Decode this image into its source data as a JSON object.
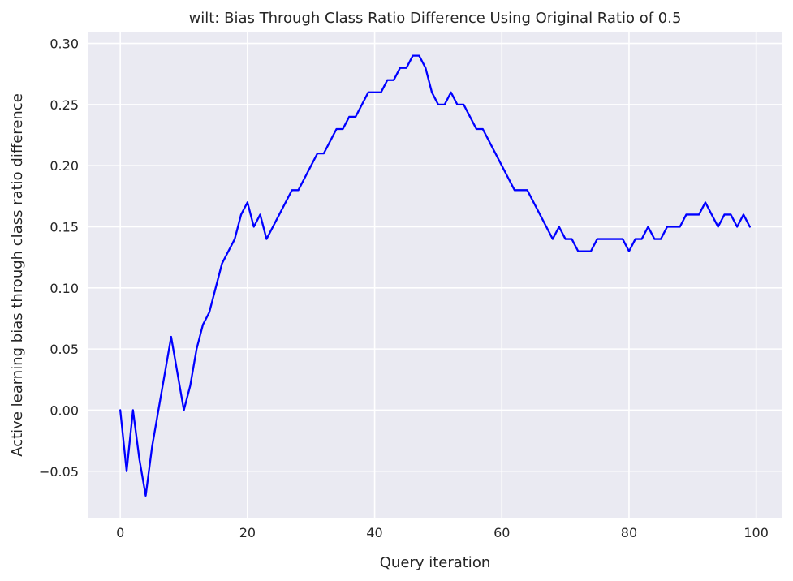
{
  "chart_data": {
    "type": "line",
    "title": "wilt: Bias Through Class Ratio Difference Using Original Ratio of 0.5",
    "xlabel": "Query iteration",
    "ylabel": "Active learning bias through class ratio difference",
    "xlim": [
      -5,
      104
    ],
    "ylim": [
      -0.088,
      0.309
    ],
    "xticks": [
      0,
      20,
      40,
      60,
      80,
      100
    ],
    "xtick_labels": [
      "0",
      "20",
      "40",
      "60",
      "80",
      "100"
    ],
    "yticks": [
      -0.05,
      0.0,
      0.05,
      0.1,
      0.15,
      0.2,
      0.25,
      0.3
    ],
    "ytick_labels": [
      "−0.05",
      "0.00",
      "0.05",
      "0.10",
      "0.15",
      "0.20",
      "0.25",
      "0.30"
    ],
    "grid": true,
    "background": "#eaeaf2",
    "grid_color": "#ffffff",
    "series": [
      {
        "color": "#0000ff",
        "x": [
          0,
          1,
          2,
          3,
          4,
          5,
          6,
          7,
          8,
          9,
          10,
          11,
          12,
          13,
          14,
          15,
          16,
          17,
          18,
          19,
          20,
          21,
          22,
          23,
          24,
          25,
          26,
          27,
          28,
          29,
          30,
          31,
          32,
          33,
          34,
          35,
          36,
          37,
          38,
          39,
          40,
          41,
          42,
          43,
          44,
          45,
          46,
          47,
          48,
          49,
          50,
          51,
          52,
          53,
          54,
          55,
          56,
          57,
          58,
          59,
          60,
          61,
          62,
          63,
          64,
          65,
          66,
          67,
          68,
          69,
          70,
          71,
          72,
          73,
          74,
          75,
          76,
          77,
          78,
          79,
          80,
          81,
          82,
          83,
          84,
          85,
          86,
          87,
          88,
          89,
          90,
          91,
          92,
          93,
          94,
          95,
          96,
          97,
          98,
          99
        ],
        "y": [
          0.0,
          -0.05,
          0.0,
          -0.04,
          -0.07,
          -0.03,
          0.0,
          0.03,
          0.06,
          0.03,
          0.0,
          0.02,
          0.05,
          0.07,
          0.08,
          0.1,
          0.12,
          0.13,
          0.14,
          0.16,
          0.17,
          0.15,
          0.16,
          0.14,
          0.15,
          0.16,
          0.17,
          0.18,
          0.18,
          0.19,
          0.2,
          0.21,
          0.21,
          0.22,
          0.23,
          0.23,
          0.24,
          0.24,
          0.25,
          0.26,
          0.26,
          0.26,
          0.27,
          0.27,
          0.28,
          0.28,
          0.29,
          0.29,
          0.28,
          0.26,
          0.25,
          0.25,
          0.26,
          0.25,
          0.25,
          0.24,
          0.23,
          0.23,
          0.22,
          0.21,
          0.2,
          0.19,
          0.18,
          0.18,
          0.18,
          0.17,
          0.16,
          0.15,
          0.14,
          0.15,
          0.14,
          0.14,
          0.13,
          0.13,
          0.13,
          0.14,
          0.14,
          0.14,
          0.14,
          0.14,
          0.13,
          0.14,
          0.14,
          0.15,
          0.14,
          0.14,
          0.15,
          0.15,
          0.15,
          0.16,
          0.16,
          0.16,
          0.17,
          0.16,
          0.15,
          0.16,
          0.16,
          0.15,
          0.16,
          0.15
        ]
      }
    ]
  }
}
